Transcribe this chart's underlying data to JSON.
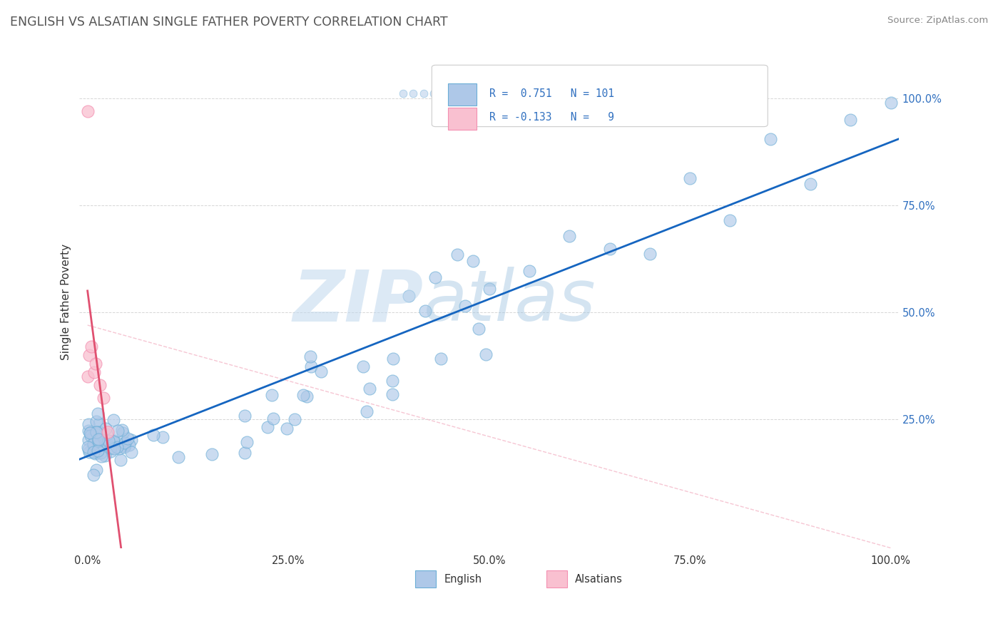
{
  "title": "ENGLISH VS ALSATIAN SINGLE FATHER POVERTY CORRELATION CHART",
  "source": "Source: ZipAtlas.com",
  "xlabel_english": "English",
  "xlabel_alsatian": "Alsatians",
  "ylabel": "Single Father Poverty",
  "english_R": 0.751,
  "english_N": 101,
  "alsatian_R": -0.133,
  "alsatian_N": 9,
  "blue_color": "#6baed6",
  "blue_face": "#aec8e8",
  "pink_color": "#f48fb1",
  "pink_face": "#f9c0d0",
  "line_blue": "#1565c0",
  "line_pink": "#e05070",
  "line_dash": "#ddaaaa",
  "legend_text_color": "#3070c0",
  "title_color": "#555555",
  "grid_color": "#cccccc",
  "watermark_zip_color": "#b0c8e0",
  "watermark_atlas_color": "#90b8d8",
  "source_color": "#888888",
  "figsize": [
    14.06,
    8.92
  ],
  "dpi": 100,
  "xlim": [
    -0.01,
    1.01
  ],
  "ylim": [
    -0.05,
    1.1
  ],
  "xtick_pos": [
    0.0,
    0.25,
    0.5,
    0.75,
    1.0
  ],
  "xtick_labels": [
    "0.0%",
    "25.0%",
    "50.0%",
    "75.0%",
    "100.0%"
  ],
  "ytick_pos": [
    0.25,
    0.5,
    0.75,
    1.0
  ],
  "ytick_labels": [
    "25.0%",
    "50.0%",
    "75.0%",
    "100.0%"
  ]
}
